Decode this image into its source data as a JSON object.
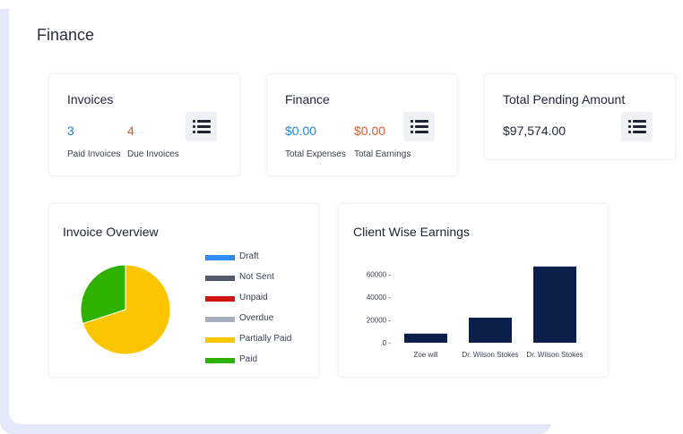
{
  "page_title": "Finance",
  "cards": {
    "invoices": {
      "title": "Invoices",
      "paid_count": "3",
      "paid_label": "Paid Invoices",
      "due_count": "4",
      "due_label": "Due Invoices",
      "menu_icon": "list-icon"
    },
    "finance": {
      "title": "Finance",
      "expenses_value": "$0.00",
      "expenses_label": "Total Expenses",
      "earnings_value": "$0.00",
      "earnings_label": "Total Earnings",
      "menu_icon": "list-icon"
    },
    "pending": {
      "title": "Total Pending Amount",
      "amount": "$97,574.00",
      "menu_icon": "list-icon"
    }
  },
  "invoice_overview": {
    "title": "Invoice Overview",
    "legend": [
      {
        "label": "Draft",
        "color": "#2e8cf0"
      },
      {
        "label": "Not Sent",
        "color": "#555a6a"
      },
      {
        "label": "Unpaid",
        "color": "#d0140f"
      },
      {
        "label": "Overdue",
        "color": "#a8afbd"
      },
      {
        "label": "Partially Paid",
        "color": "#fbc500"
      },
      {
        "label": "Paid",
        "color": "#2fb100"
      }
    ]
  },
  "client_earnings": {
    "title": "Client Wise Earnings"
  },
  "chart_data": [
    {
      "type": "pie",
      "title": "Invoice Overview",
      "categories": [
        "Draft",
        "Not Sent",
        "Unpaid",
        "Overdue",
        "Partially Paid",
        "Paid"
      ],
      "values": [
        0,
        0,
        0,
        0,
        70,
        30
      ],
      "colors": [
        "#2e8cf0",
        "#555a6a",
        "#d0140f",
        "#a8afbd",
        "#fbc500",
        "#2fb100"
      ],
      "legend": "right"
    },
    {
      "type": "bar",
      "title": "Client Wise Earnings",
      "categories": [
        "Zoe will",
        "Dr. Wilson Stokes",
        "Dr. Wilson Stokes"
      ],
      "values": [
        8000,
        22000,
        67000
      ],
      "ylim": [
        0,
        70000
      ],
      "yticks": [
        0,
        20000,
        40000,
        60000
      ],
      "color": "#0b1f4a",
      "grid": false
    }
  ]
}
